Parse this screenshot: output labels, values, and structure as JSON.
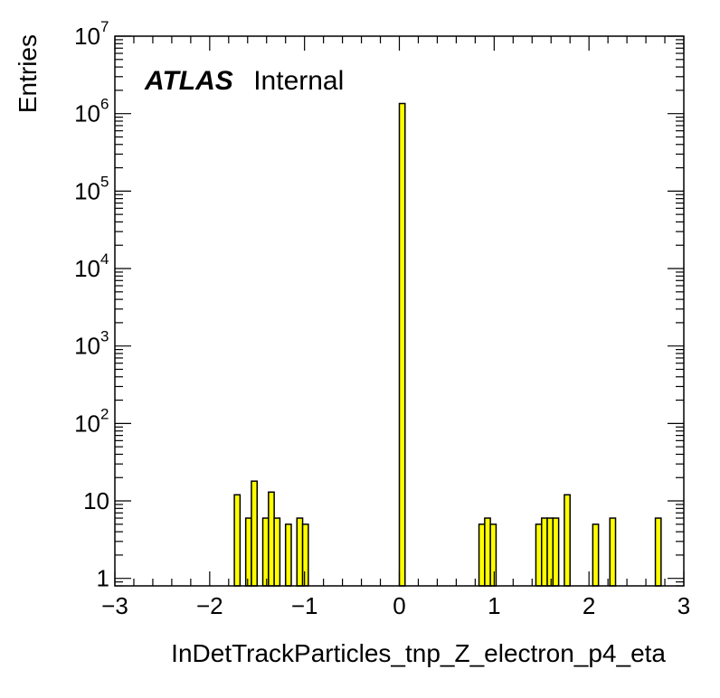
{
  "chart_data": {
    "type": "bar",
    "subtype": "histogram",
    "title": "",
    "label_bold": "ATLAS",
    "label_normal": "Internal",
    "xlabel": "InDetTrackParticles_tnp_Z_electron_p4_eta",
    "ylabel": "Entries",
    "xlim": [
      -3,
      3
    ],
    "ylim": [
      0.8,
      10000000
    ],
    "yscale": "log",
    "bin_width": 0.06,
    "x_tick_labels": [
      "−3",
      "−2",
      "−1",
      "0",
      "1",
      "2",
      "3"
    ],
    "x_tick_values": [
      -3,
      -2,
      -1,
      0,
      1,
      2,
      3
    ],
    "y_tick_values": [
      1,
      10,
      100,
      1000,
      10000,
      100000,
      1000000,
      10000000
    ],
    "y_tick_labels": [
      {
        "base": "1",
        "exp": ""
      },
      {
        "base": "10",
        "exp": ""
      },
      {
        "base": "10",
        "exp": "2"
      },
      {
        "base": "10",
        "exp": "3"
      },
      {
        "base": "10",
        "exp": "4"
      },
      {
        "base": "10",
        "exp": "5"
      },
      {
        "base": "10",
        "exp": "6"
      },
      {
        "base": "10",
        "exp": "7"
      }
    ],
    "bins": [
      {
        "x_low": -1.74,
        "x_high": -1.68,
        "value": 12
      },
      {
        "x_low": -1.62,
        "x_high": -1.56,
        "value": 6
      },
      {
        "x_low": -1.56,
        "x_high": -1.5,
        "value": 18
      },
      {
        "x_low": -1.44,
        "x_high": -1.38,
        "value": 6
      },
      {
        "x_low": -1.38,
        "x_high": -1.32,
        "value": 13
      },
      {
        "x_low": -1.32,
        "x_high": -1.26,
        "value": 6
      },
      {
        "x_low": -1.2,
        "x_high": -1.14,
        "value": 5
      },
      {
        "x_low": -1.08,
        "x_high": -1.02,
        "value": 6
      },
      {
        "x_low": -1.02,
        "x_high": -0.96,
        "value": 5
      },
      {
        "x_low": 0.0,
        "x_high": 0.06,
        "value": 1350000
      },
      {
        "x_low": 0.84,
        "x_high": 0.9,
        "value": 5
      },
      {
        "x_low": 0.9,
        "x_high": 0.96,
        "value": 6
      },
      {
        "x_low": 0.96,
        "x_high": 1.02,
        "value": 5
      },
      {
        "x_low": 1.44,
        "x_high": 1.5,
        "value": 5
      },
      {
        "x_low": 1.5,
        "x_high": 1.56,
        "value": 6
      },
      {
        "x_low": 1.56,
        "x_high": 1.62,
        "value": 6
      },
      {
        "x_low": 1.62,
        "x_high": 1.68,
        "value": 6
      },
      {
        "x_low": 1.74,
        "x_high": 1.8,
        "value": 12
      },
      {
        "x_low": 2.04,
        "x_high": 2.1,
        "value": 5
      },
      {
        "x_low": 2.22,
        "x_high": 2.28,
        "value": 6
      },
      {
        "x_low": 2.7,
        "x_high": 2.76,
        "value": 6
      }
    ],
    "fill_color": "#ffff00",
    "line_color": "#000000",
    "grid": false,
    "legend": "none"
  }
}
